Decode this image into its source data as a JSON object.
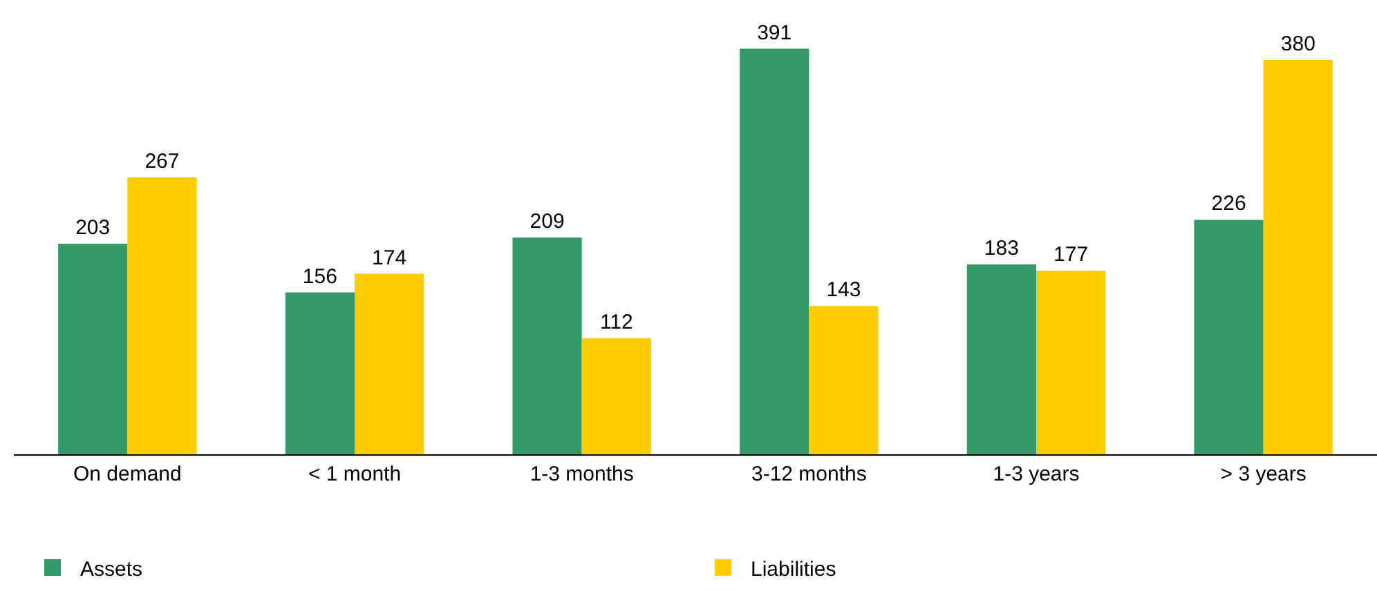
{
  "chart_data": {
    "type": "bar",
    "categories": [
      "On demand",
      "< 1 month",
      "1-3 months",
      "3-12 months",
      "1-3 years",
      "> 3 years"
    ],
    "series": [
      {
        "name": "Assets",
        "color": "#339966",
        "values": [
          203,
          156,
          209,
          391,
          183,
          226
        ]
      },
      {
        "name": "Liabilities",
        "color": "#ffcc00",
        "values": [
          267,
          174,
          112,
          143,
          177,
          380
        ]
      }
    ],
    "data_labels": true,
    "legend": "bottom"
  }
}
